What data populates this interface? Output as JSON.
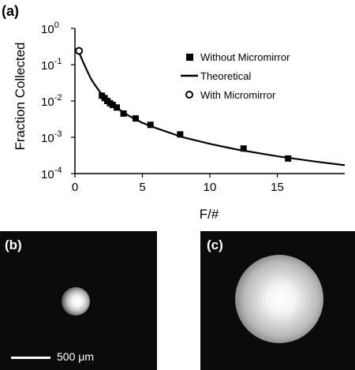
{
  "chart_data": {
    "type": "scatter",
    "panel_label": "(a)",
    "xlabel": "F/#",
    "ylabel": "Fraction Collected",
    "xlim": [
      0,
      20
    ],
    "ylim": [
      0.0001,
      1
    ],
    "yscale": "log",
    "x_ticks": [
      "0",
      "5",
      "10",
      "15"
    ],
    "x_tick_values": [
      0,
      5,
      10,
      15
    ],
    "y_ticks": [
      {
        "base": "10",
        "exp": "0",
        "value": 1
      },
      {
        "base": "10",
        "exp": "-1",
        "value": 0.1
      },
      {
        "base": "10",
        "exp": "-2",
        "value": 0.01
      },
      {
        "base": "10",
        "exp": "-3",
        "value": 0.001
      },
      {
        "base": "10",
        "exp": "-4",
        "value": 0.0001
      }
    ],
    "grid": false,
    "legend_position": "top-right",
    "series": [
      {
        "name": "Without Micromirror",
        "marker": "square",
        "x": [
          2.0,
          2.2,
          2.4,
          2.6,
          2.8,
          3.1,
          3.6,
          4.5,
          5.6,
          7.8,
          12.5,
          15.8
        ],
        "y": [
          0.014,
          0.012,
          0.01,
          0.0087,
          0.0078,
          0.0066,
          0.0045,
          0.0033,
          0.0022,
          0.0012,
          0.00049,
          0.00026
        ]
      },
      {
        "name": "Theoretical",
        "marker": "line",
        "x": [
          0.3,
          0.6,
          0.9,
          1.2,
          1.5,
          2,
          2.5,
          3,
          4,
          5,
          6,
          8,
          10,
          12,
          15,
          18,
          20
        ],
        "y": [
          0.22,
          0.12,
          0.068,
          0.04,
          0.027,
          0.015,
          0.0098,
          0.0068,
          0.0039,
          0.0025,
          0.0018,
          0.001,
          0.00066,
          0.00046,
          0.0003,
          0.00021,
          0.00017
        ]
      },
      {
        "name": "With Micromirror",
        "marker": "open-circle",
        "x": [
          0.3
        ],
        "y": [
          0.24
        ]
      }
    ]
  },
  "panels": {
    "b": {
      "label": "(b)",
      "scalebar_text": "500 μm"
    },
    "c": {
      "label": "(c)"
    }
  },
  "colors": {
    "ink": "#000000",
    "image_background": "#0b0b0b",
    "spot": "#ffffff"
  }
}
